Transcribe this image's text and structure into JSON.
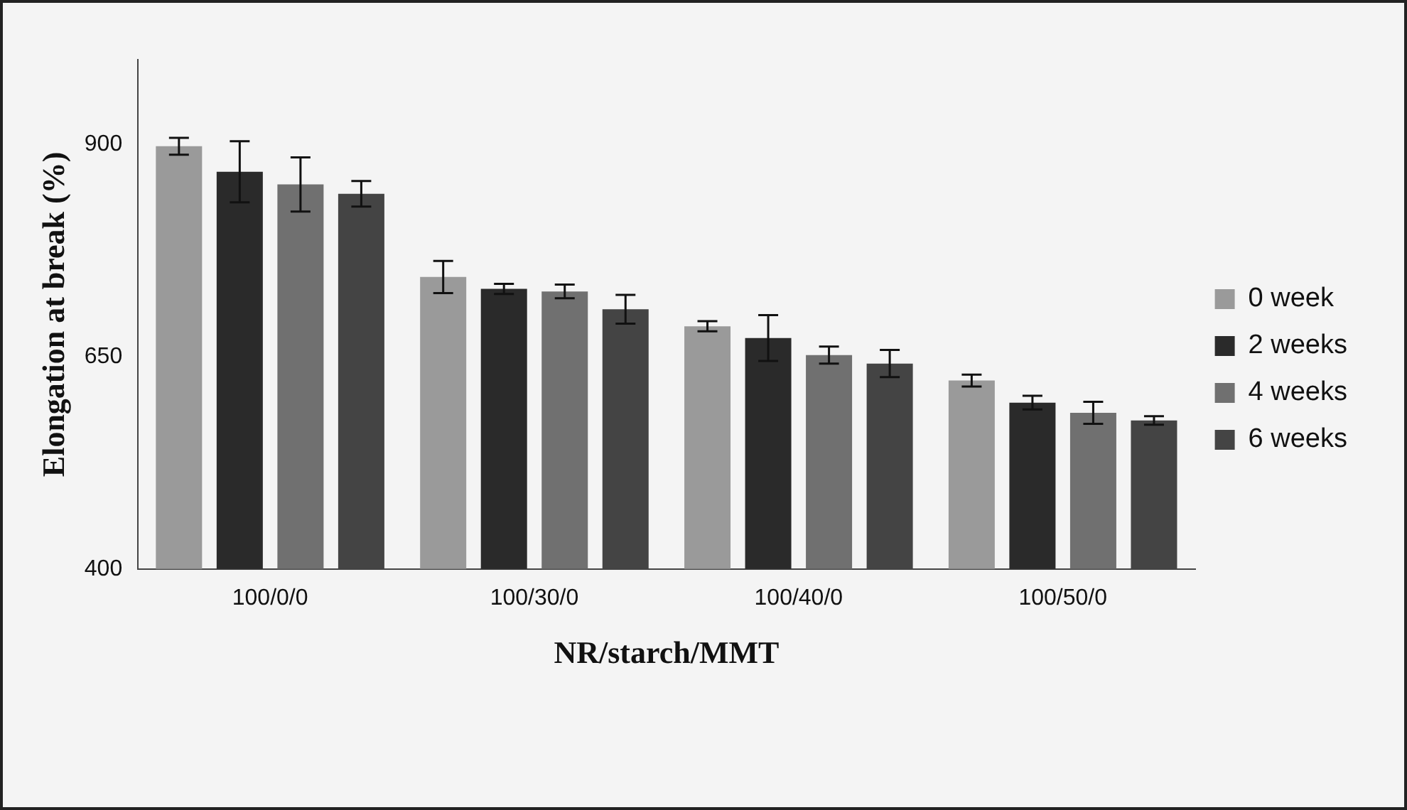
{
  "chart_data": {
    "type": "bar",
    "xlabel": "NR/starch/MMT",
    "ylabel": "Elongation at break (%)",
    "categories": [
      "100/0/0",
      "100/30/0",
      "100/40/0",
      "100/50/0"
    ],
    "series": [
      {
        "name": "0 week",
        "color": "#9a9a9a",
        "values": [
          898,
          744,
          686,
          622
        ],
        "errors": [
          10,
          19,
          6,
          7
        ]
      },
      {
        "name": "2 weeks",
        "color": "#2a2a2a",
        "values": [
          868,
          730,
          672,
          596
        ],
        "errors": [
          36,
          6,
          27,
          8
        ]
      },
      {
        "name": "4 weeks",
        "color": "#707070",
        "values": [
          853,
          727,
          652,
          584
        ],
        "errors": [
          32,
          8,
          10,
          13
        ]
      },
      {
        "name": "6 weeks",
        "color": "#444444",
        "values": [
          842,
          706,
          642,
          575
        ],
        "errors": [
          15,
          17,
          16,
          5
        ]
      }
    ],
    "ylim": [
      400,
      1000
    ],
    "yticks": [
      400,
      650,
      900
    ],
    "grid": false,
    "legend": "right"
  }
}
